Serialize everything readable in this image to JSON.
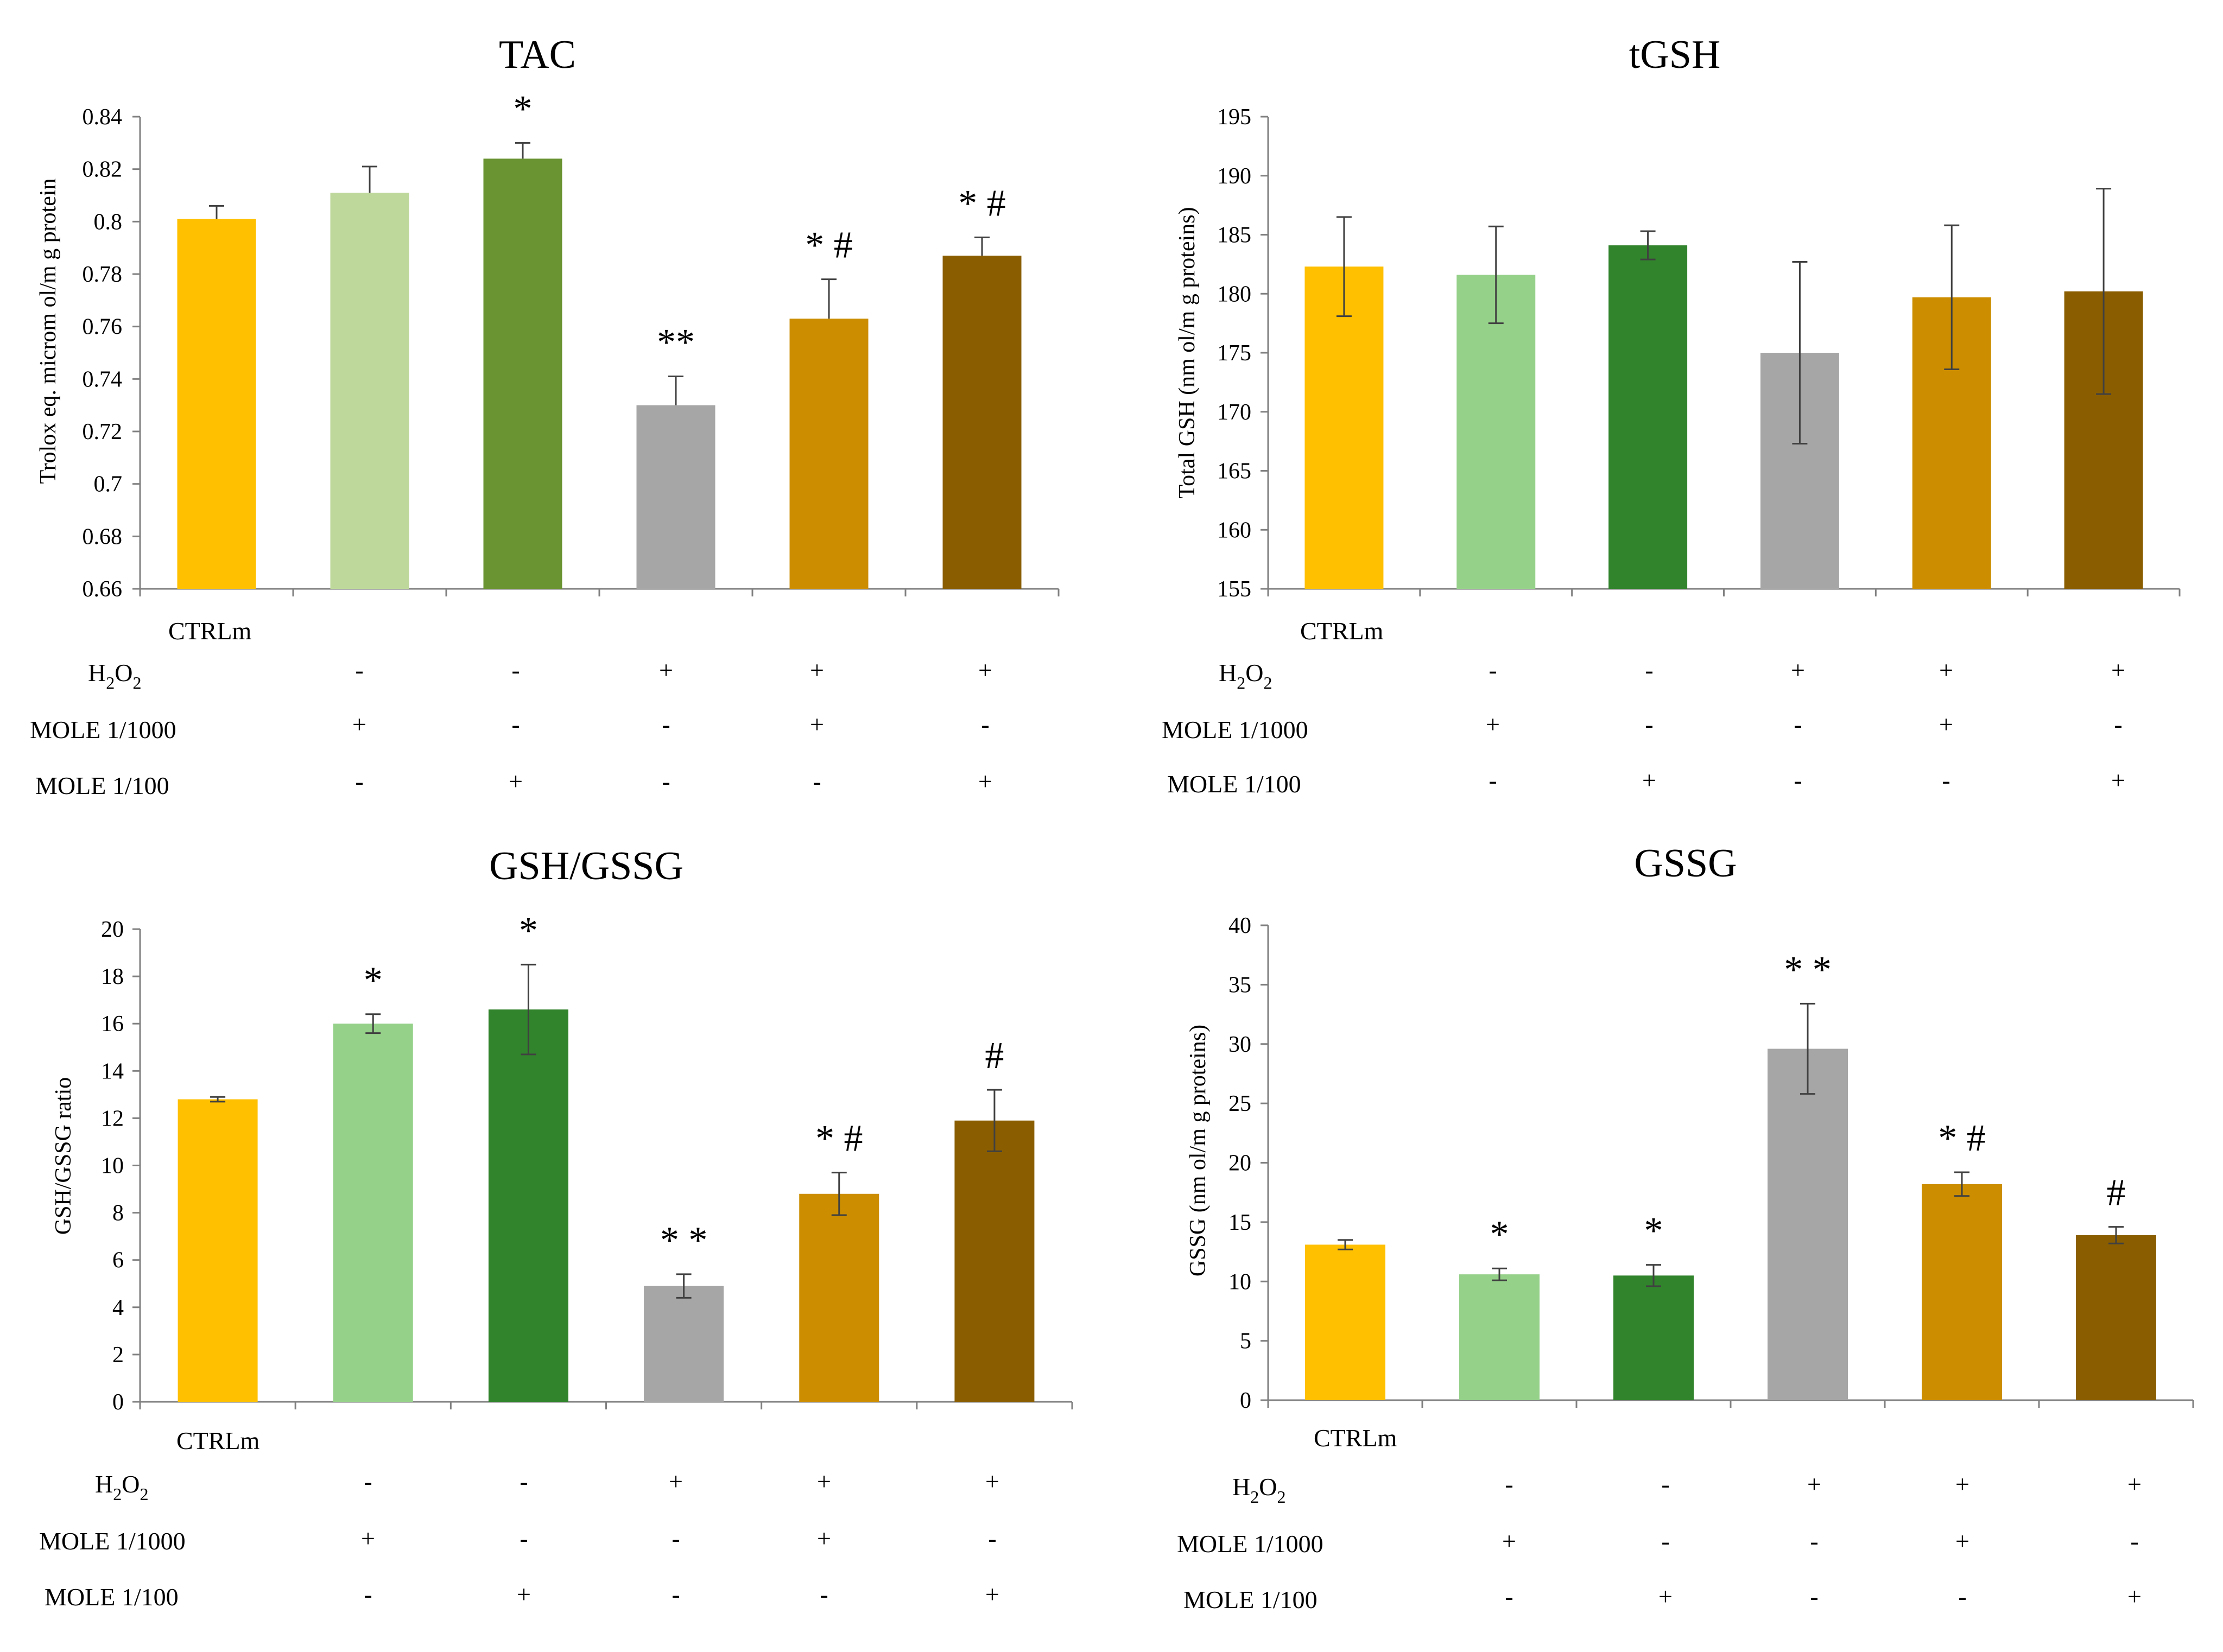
{
  "figure": {
    "row_labels": {
      "ctrl": "CTRLm",
      "h2o2_base": "H",
      "h2o2_sub1": "2",
      "h2o2_mid": "O",
      "h2o2_sub2": "2",
      "mole1000": "MOLE 1/1000",
      "mole100": "MOLE 1/100"
    },
    "treatment_signs": {
      "h2o2": [
        "",
        "-",
        "-",
        "+",
        "+",
        "+"
      ],
      "mole1000": [
        "",
        "+",
        "-",
        "-",
        "+",
        "-"
      ],
      "mole100": [
        "",
        "-",
        "+",
        "-",
        "-",
        "+"
      ]
    }
  },
  "chart_data": [
    {
      "id": "tac",
      "type": "bar",
      "title": "TAC",
      "ylabel": "Trolox eq. microm ol/m g protein",
      "xlabel": "",
      "ylim": [
        0.66,
        0.84
      ],
      "yticks": [
        0.66,
        0.68,
        0.7,
        0.72,
        0.74,
        0.76,
        0.78,
        0.8,
        0.82,
        0.84
      ],
      "ytick_labels": [
        "0.66",
        "0.68",
        "0.7",
        "0.72",
        "0.74",
        "0.76",
        "0.78",
        "0.8",
        "0.82",
        "0.84"
      ],
      "categories": [
        "CTRLm",
        "MOLE 1/1000",
        "MOLE 1/100",
        "H2O2",
        "H2O2 + MOLE 1/1000",
        "H2O2 + MOLE 1/100"
      ],
      "values": [
        0.801,
        0.811,
        0.824,
        0.73,
        0.763,
        0.787
      ],
      "errors": [
        0.005,
        0.01,
        0.006,
        0.011,
        0.015,
        0.007
      ],
      "error_style": "upper-cap",
      "colors": [
        "#FFC000",
        "#BDD89A",
        "#6A9332",
        "#A6A6A6",
        "#CC8E00",
        "#8A5E00"
      ],
      "annotations": [
        "",
        "",
        "*",
        "**",
        "* #",
        "* #"
      ]
    },
    {
      "id": "tgsh",
      "type": "bar",
      "title": "tGSH",
      "ylabel": "Total GSH (nm ol/m g proteins)",
      "xlabel": "",
      "ylim": [
        155,
        195
      ],
      "yticks": [
        155,
        160,
        165,
        170,
        175,
        180,
        185,
        190,
        195
      ],
      "ytick_labels": [
        "155",
        "160",
        "165",
        "170",
        "175",
        "180",
        "185",
        "190",
        "195"
      ],
      "categories": [
        "CTRLm",
        "MOLE 1/1000",
        "MOLE 1/100",
        "H2O2",
        "H2O2 + MOLE 1/1000",
        "H2O2 + MOLE 1/100"
      ],
      "values": [
        182.3,
        181.6,
        184.1,
        175.0,
        179.7,
        180.2
      ],
      "errors": [
        4.2,
        4.1,
        1.2,
        7.7,
        6.1,
        8.7
      ],
      "error_style": "both",
      "colors": [
        "#FFC000",
        "#96D18A",
        "#31842C",
        "#A6A6A6",
        "#CC8E00",
        "#8A5E00"
      ],
      "annotations": [
        "",
        "",
        "",
        "",
        "",
        ""
      ]
    },
    {
      "id": "gsh_gssg",
      "type": "bar",
      "title": "GSH/GSSG",
      "ylabel": "GSH/GSSG  ratio",
      "xlabel": "",
      "ylim": [
        0,
        20
      ],
      "yticks": [
        0,
        2,
        4,
        6,
        8,
        10,
        12,
        14,
        16,
        18,
        20
      ],
      "ytick_labels": [
        "0",
        "2",
        "4",
        "6",
        "8",
        "10",
        "12",
        "14",
        "16",
        "18",
        "20"
      ],
      "categories": [
        "CTRLm",
        "MOLE 1/1000",
        "MOLE 1/100",
        "H2O2",
        "H2O2 + MOLE 1/1000",
        "H2O2 + MOLE 1/100"
      ],
      "values": [
        12.8,
        16.0,
        16.6,
        4.9,
        8.8,
        11.9
      ],
      "errors": [
        0.1,
        0.4,
        1.9,
        0.5,
        0.9,
        1.3
      ],
      "error_style": "both",
      "colors": [
        "#FFC000",
        "#96D18A",
        "#31842C",
        "#A6A6A6",
        "#CC8E00",
        "#8A5E00"
      ],
      "annotations": [
        "",
        "*",
        "*",
        "* *",
        "* #",
        "#"
      ]
    },
    {
      "id": "gssg",
      "type": "bar",
      "title": "GSSG",
      "ylabel": "GSSG (nm ol/m g proteins)",
      "xlabel": "",
      "ylim": [
        0,
        40
      ],
      "yticks": [
        0,
        5,
        10,
        15,
        20,
        25,
        30,
        35,
        40
      ],
      "ytick_labels": [
        "0",
        "5",
        "10",
        "15",
        "20",
        "25",
        "30",
        "35",
        "40"
      ],
      "categories": [
        "CTRLm",
        "MOLE 1/1000",
        "MOLE 1/100",
        "H2O2",
        "H2O2 + MOLE 1/1000",
        "H2O2 + MOLE 1/100"
      ],
      "values": [
        13.1,
        10.6,
        10.5,
        29.6,
        18.2,
        13.9
      ],
      "errors": [
        0.4,
        0.5,
        0.9,
        3.8,
        1.0,
        0.7
      ],
      "error_style": "both",
      "colors": [
        "#FFC000",
        "#96D18A",
        "#31842C",
        "#A6A6A6",
        "#CC8E00",
        "#8A5E00"
      ],
      "annotations": [
        "",
        "*",
        "*",
        "* *",
        "* #",
        "#"
      ]
    }
  ]
}
